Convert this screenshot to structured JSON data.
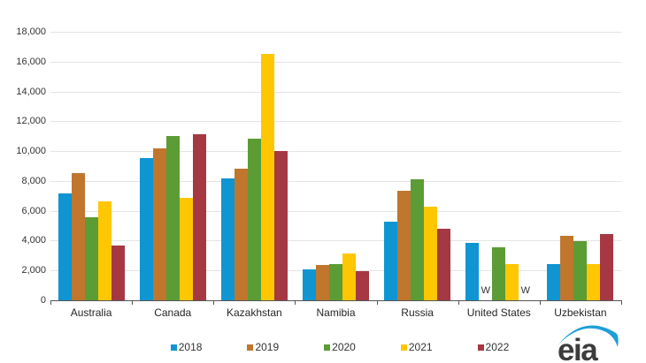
{
  "chart_data": {
    "type": "bar",
    "title": "",
    "categories": [
      "Australia",
      "Canada",
      "Kazakhstan",
      "Namibia",
      "Russia",
      "United States",
      "Uzbekistan"
    ],
    "series": [
      {
        "name": "2018",
        "color": "#0e95d2",
        "values": [
          7150,
          9550,
          8200,
          2100,
          5300,
          3870,
          2450
        ]
      },
      {
        "name": "2019",
        "color": "#c0762c",
        "values": [
          8500,
          10200,
          8800,
          2400,
          7350,
          "W",
          4320
        ]
      },
      {
        "name": "2020",
        "color": "#5b9c35",
        "values": [
          5550,
          11000,
          10850,
          2450,
          8100,
          3530,
          3950
        ]
      },
      {
        "name": "2021",
        "color": "#fec702",
        "values": [
          6650,
          6900,
          16550,
          3150,
          6300,
          2450,
          2450
        ]
      },
      {
        "name": "2022",
        "color": "#a53843",
        "values": [
          3650,
          11150,
          10000,
          1950,
          4800,
          "W",
          4450
        ]
      }
    ],
    "xlabel": "",
    "ylabel": "",
    "ylim": [
      0,
      18000
    ],
    "ytick_step": 2000,
    "ytick_labels": [
      "0",
      "2,000",
      "4,000",
      "6,000",
      "8,000",
      "10,000",
      "12,000",
      "14,000",
      "16,000",
      "18,000"
    ],
    "withheld_symbol": "W",
    "grid": "horizontal",
    "legend_position": "bottom"
  },
  "logo": {
    "text": "eia",
    "swoosh_color": "#1e9fd8"
  }
}
